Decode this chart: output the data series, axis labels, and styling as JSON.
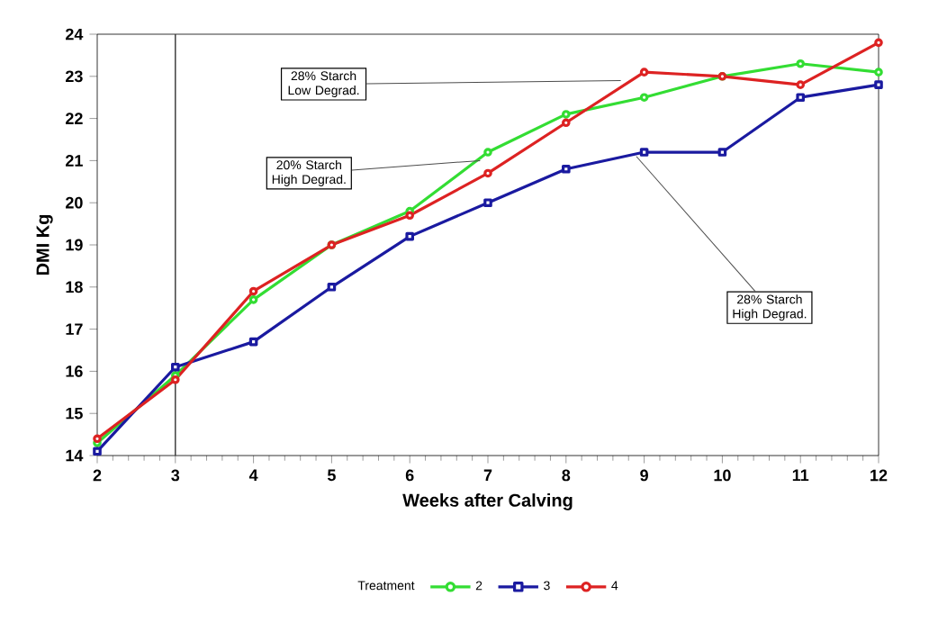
{
  "chart_data": {
    "type": "line",
    "xlabel": "Weeks after Calving",
    "ylabel": "DMI Kg",
    "legend_title": "Treatment",
    "legend": "bottom",
    "grid": false,
    "x": [
      2,
      3,
      4,
      5,
      6,
      7,
      8,
      9,
      10,
      11,
      12
    ],
    "xlim": [
      2,
      12
    ],
    "xticks": [
      2,
      3,
      4,
      5,
      6,
      7,
      8,
      9,
      10,
      11,
      12
    ],
    "ylim": [
      14,
      24
    ],
    "yticks": [
      14,
      15,
      16,
      17,
      18,
      19,
      20,
      21,
      22,
      23,
      24
    ],
    "line_style": "solid",
    "series": [
      {
        "name": "2",
        "color": "#33dd33",
        "marker": "circle",
        "values": [
          14.3,
          15.9,
          17.7,
          19.0,
          19.8,
          21.2,
          22.1,
          22.5,
          23.0,
          23.3,
          23.1
        ]
      },
      {
        "name": "3",
        "color": "#1a1aa0",
        "marker": "square",
        "values": [
          14.1,
          16.1,
          16.7,
          18.0,
          19.2,
          20.0,
          20.8,
          21.2,
          21.2,
          22.5,
          22.8
        ]
      },
      {
        "name": "4",
        "color": "#dd2222",
        "marker": "circle",
        "values": [
          14.4,
          15.8,
          17.9,
          19.0,
          19.7,
          20.7,
          21.9,
          23.1,
          23.0,
          22.8,
          23.8
        ]
      }
    ],
    "ref_lines": [
      {
        "axis": "x",
        "value": 3,
        "color": "#333333"
      }
    ],
    "annotations": [
      {
        "text": "28% Starch Low Degrad.",
        "x": 8.7,
        "y": 22.9
      },
      {
        "text": "20% Starch High Degrad.",
        "x": 6.9,
        "y": 21.0
      },
      {
        "text": "28% Starch High Degrad.",
        "x": 8.9,
        "y": 21.1
      }
    ]
  }
}
